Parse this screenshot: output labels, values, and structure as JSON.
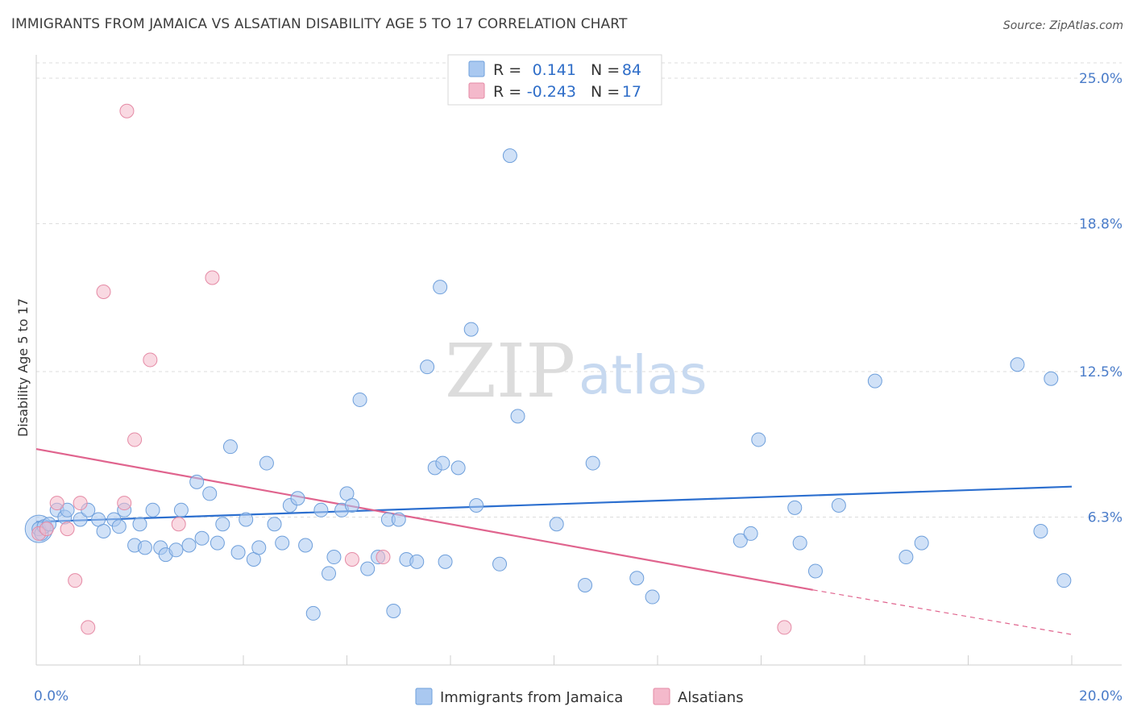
{
  "header": {
    "title": "IMMIGRANTS FROM JAMAICA VS ALSATIAN DISABILITY AGE 5 TO 17 CORRELATION CHART",
    "source": "Source: ZipAtlas.com"
  },
  "watermark": {
    "zip": "ZIP",
    "atlas": "atlas"
  },
  "legend": {
    "rows": [
      {
        "r_label": "R =",
        "r_value": "0.141",
        "n_label": "N =",
        "n_value": "84",
        "color": "#a9c8f0"
      },
      {
        "r_label": "R =",
        "r_value": "-0.243",
        "n_label": "N =",
        "n_value": "17",
        "color": "#f4b9cb"
      }
    ]
  },
  "bottom_legend": [
    {
      "label": "Immigrants from Jamaica",
      "color": "#a9c8f0"
    },
    {
      "label": "Alsatians",
      "color": "#f4b9cb"
    }
  ],
  "chart_data": {
    "type": "scatter",
    "ylabel": "Disability Age 5 to 17",
    "xlim": [
      0,
      20
    ],
    "ylim": [
      0,
      25
    ],
    "x_tick_labels": [
      {
        "value": 0,
        "label": "0.0%"
      },
      {
        "value": 20,
        "label": "20.0%"
      }
    ],
    "y_tick_labels": [
      {
        "value": 25.0,
        "label": "25.0%"
      },
      {
        "value": 18.8,
        "label": "18.8%"
      },
      {
        "value": 12.5,
        "label": "12.5%"
      },
      {
        "value": 6.3,
        "label": "6.3%"
      }
    ],
    "grid": true,
    "series": [
      {
        "name": "Immigrants from Jamaica",
        "color": "#a9c8f0",
        "stroke": "#6e9fdb",
        "trendline": {
          "x": [
            0,
            20
          ],
          "y": [
            6.1,
            7.6
          ],
          "color": "#2c6fcf"
        },
        "points": [
          [
            0.05,
            5.8
          ],
          [
            0.1,
            5.6
          ],
          [
            0.15,
            5.9
          ],
          [
            0.25,
            6.0
          ],
          [
            0.4,
            6.6
          ],
          [
            0.55,
            6.3
          ],
          [
            0.6,
            6.6
          ],
          [
            0.85,
            6.2
          ],
          [
            1.0,
            6.6
          ],
          [
            1.2,
            6.2
          ],
          [
            1.3,
            5.7
          ],
          [
            1.5,
            6.2
          ],
          [
            1.6,
            5.9
          ],
          [
            1.7,
            6.6
          ],
          [
            1.9,
            5.1
          ],
          [
            2.0,
            6.0
          ],
          [
            2.1,
            5.0
          ],
          [
            2.25,
            6.6
          ],
          [
            2.4,
            5.0
          ],
          [
            2.5,
            4.7
          ],
          [
            2.7,
            4.9
          ],
          [
            2.8,
            6.6
          ],
          [
            2.95,
            5.1
          ],
          [
            3.1,
            7.8
          ],
          [
            3.2,
            5.4
          ],
          [
            3.35,
            7.3
          ],
          [
            3.5,
            5.2
          ],
          [
            3.6,
            6.0
          ],
          [
            3.75,
            9.3
          ],
          [
            3.9,
            4.8
          ],
          [
            4.05,
            6.2
          ],
          [
            4.2,
            4.5
          ],
          [
            4.3,
            5.0
          ],
          [
            4.45,
            8.6
          ],
          [
            4.6,
            6.0
          ],
          [
            4.75,
            5.2
          ],
          [
            4.9,
            6.8
          ],
          [
            5.05,
            7.1
          ],
          [
            5.2,
            5.1
          ],
          [
            5.35,
            2.2
          ],
          [
            5.5,
            6.6
          ],
          [
            5.65,
            3.9
          ],
          [
            5.75,
            4.6
          ],
          [
            5.9,
            6.6
          ],
          [
            6.0,
            7.3
          ],
          [
            6.1,
            6.8
          ],
          [
            6.25,
            11.3
          ],
          [
            6.4,
            4.1
          ],
          [
            6.6,
            4.6
          ],
          [
            6.8,
            6.2
          ],
          [
            6.9,
            2.3
          ],
          [
            7.0,
            6.2
          ],
          [
            7.15,
            4.5
          ],
          [
            7.35,
            4.4
          ],
          [
            7.55,
            12.7
          ],
          [
            7.7,
            8.4
          ],
          [
            7.8,
            16.1
          ],
          [
            7.85,
            8.6
          ],
          [
            7.9,
            4.4
          ],
          [
            8.15,
            8.4
          ],
          [
            8.4,
            14.3
          ],
          [
            8.5,
            6.8
          ],
          [
            8.95,
            4.3
          ],
          [
            9.15,
            21.7
          ],
          [
            9.3,
            10.6
          ],
          [
            10.05,
            6.0
          ],
          [
            10.6,
            3.4
          ],
          [
            10.75,
            8.6
          ],
          [
            11.6,
            3.7
          ],
          [
            11.9,
            2.9
          ],
          [
            13.6,
            5.3
          ],
          [
            13.8,
            5.6
          ],
          [
            13.95,
            9.6
          ],
          [
            14.65,
            6.7
          ],
          [
            14.75,
            5.2
          ],
          [
            15.05,
            4.0
          ],
          [
            15.5,
            6.8
          ],
          [
            16.2,
            12.1
          ],
          [
            16.8,
            4.6
          ],
          [
            17.1,
            5.2
          ],
          [
            18.95,
            12.8
          ],
          [
            19.4,
            5.7
          ],
          [
            19.6,
            12.2
          ],
          [
            19.85,
            3.6
          ]
        ]
      },
      {
        "name": "Alsatians",
        "color": "#f4b9cb",
        "stroke": "#e58aa5",
        "trendline": {
          "x": [
            0,
            15
          ],
          "y": [
            9.2,
            3.2
          ],
          "dashed_to": [
            20,
            1.3
          ],
          "color": "#e0648e"
        },
        "points": [
          [
            0.05,
            5.6
          ],
          [
            0.2,
            5.8
          ],
          [
            0.4,
            6.9
          ],
          [
            0.6,
            5.8
          ],
          [
            0.75,
            3.6
          ],
          [
            0.85,
            6.9
          ],
          [
            1.0,
            1.6
          ],
          [
            1.3,
            15.9
          ],
          [
            1.7,
            6.9
          ],
          [
            1.75,
            23.6
          ],
          [
            1.9,
            9.6
          ],
          [
            2.2,
            13.0
          ],
          [
            2.75,
            6.0
          ],
          [
            3.4,
            16.5
          ],
          [
            6.1,
            4.5
          ],
          [
            6.7,
            4.6
          ],
          [
            14.45,
            1.6
          ]
        ]
      }
    ]
  }
}
